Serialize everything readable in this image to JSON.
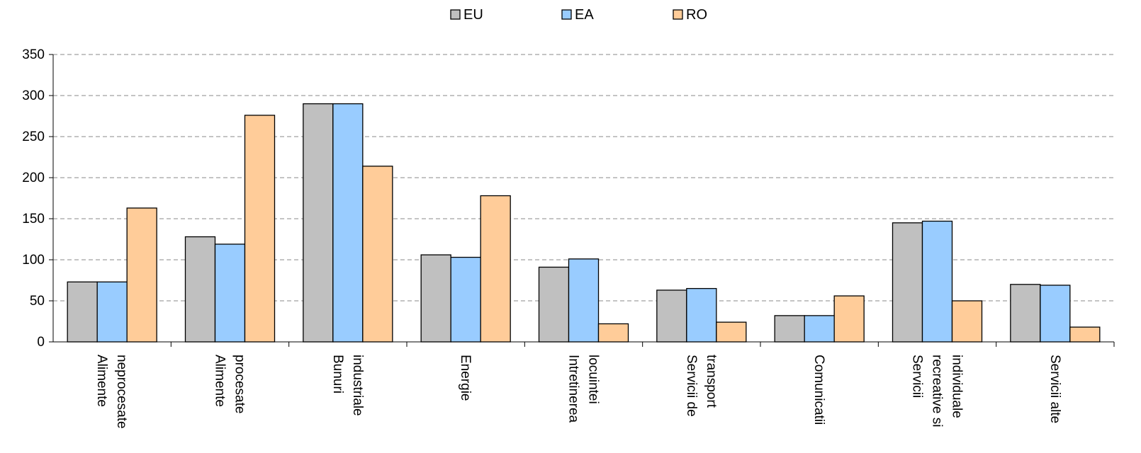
{
  "chart_data": {
    "type": "bar",
    "categories": [
      [
        "Alimente",
        "neprocesate"
      ],
      [
        "Alimente",
        "procesate"
      ],
      [
        "Bunuri",
        "industriale"
      ],
      [
        "Energie"
      ],
      [
        "Intretinerea",
        "locuintei"
      ],
      [
        "Servicii de",
        "transport"
      ],
      [
        "Comunicatii"
      ],
      [
        "Servicii",
        "recreative si",
        "individuale"
      ],
      [
        "Servicii alte"
      ]
    ],
    "series": [
      {
        "name": "EU",
        "color": "#c0c0c0",
        "values": [
          73,
          128,
          290,
          106,
          91,
          63,
          32,
          145,
          70
        ]
      },
      {
        "name": "EA",
        "color": "#99ccff",
        "values": [
          73,
          119,
          290,
          103,
          101,
          65,
          32,
          147,
          69
        ]
      },
      {
        "name": "RO",
        "color": "#ffcc99",
        "values": [
          163,
          276,
          214,
          178,
          22,
          24,
          56,
          50,
          18
        ]
      }
    ],
    "ylim": [
      0,
      350
    ],
    "yticks": [
      "0",
      "50",
      "100",
      "150",
      "200",
      "250",
      "300",
      "350"
    ],
    "grid": true,
    "legend_position": "top-center"
  }
}
